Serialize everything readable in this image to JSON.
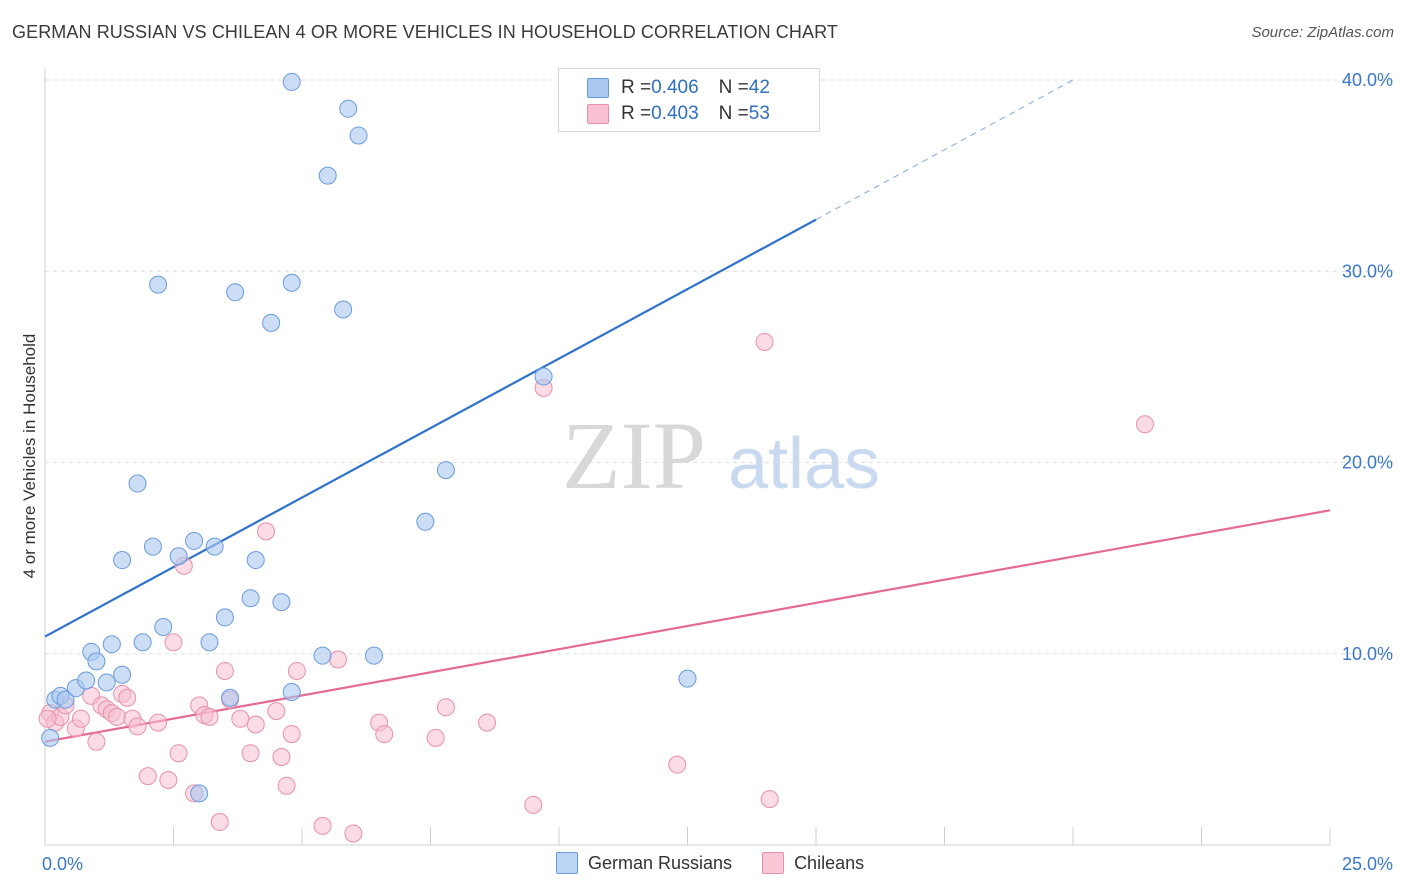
{
  "header": {
    "title": "GERMAN RUSSIAN VS CHILEAN 4 OR MORE VEHICLES IN HOUSEHOLD CORRELATION CHART",
    "source": "Source: ZipAtlas.com"
  },
  "legend": {
    "rows": [
      {
        "r_label": "R = ",
        "r_value": "0.406",
        "n_label": "N = ",
        "n_value": "42",
        "color": "#aac8f0",
        "border": "#6a9be0"
      },
      {
        "r_label": "R = ",
        "r_value": "0.403",
        "n_label": "N = ",
        "n_value": "53",
        "color": "#f8c0d0",
        "border": "#e890aa"
      }
    ]
  },
  "bottom_legend": {
    "items": [
      {
        "label": "German Russians",
        "color": "#bcd5f5",
        "border": "#6a9be0"
      },
      {
        "label": "Chileans",
        "color": "#f8c6d4",
        "border": "#e890aa"
      }
    ]
  },
  "watermark": {
    "zip": "ZIP",
    "atlas": "atlas"
  },
  "colors": {
    "blue": "#2f72cc",
    "pink": "#e56a93",
    "blue_point": "#aac8f0",
    "pink_point": "#f8c0d0"
  },
  "chart_data": {
    "type": "scatter",
    "title": "GERMAN RUSSIAN VS CHILEAN 4 OR MORE VEHICLES IN HOUSEHOLD CORRELATION CHART",
    "xlabel": "",
    "ylabel": "4 or more Vehicles in Household",
    "xlim": [
      0,
      25
    ],
    "ylim": [
      0,
      40
    ],
    "x_tick_labels": [
      "0.0%",
      "25.0%"
    ],
    "y_ticks": [
      10,
      20,
      30,
      40
    ],
    "y_tick_labels": [
      "10.0%",
      "20.0%",
      "30.0%",
      "40.0%"
    ],
    "grid": true,
    "series": [
      {
        "name": "German Russians",
        "trend": {
          "x0": 0,
          "y0": 10.9,
          "x1": 15,
          "y1": 32.7,
          "dash_to_x": 20,
          "dash_to_y": 40
        },
        "points": [
          [
            0.1,
            5.6
          ],
          [
            0.2,
            7.6
          ],
          [
            0.3,
            7.8
          ],
          [
            0.4,
            7.6
          ],
          [
            0.6,
            8.2
          ],
          [
            0.8,
            8.6
          ],
          [
            0.9,
            10.1
          ],
          [
            1.0,
            9.6
          ],
          [
            1.2,
            8.5
          ],
          [
            1.3,
            10.5
          ],
          [
            1.5,
            8.9
          ],
          [
            1.5,
            14.9
          ],
          [
            1.9,
            10.6
          ],
          [
            1.8,
            18.9
          ],
          [
            2.1,
            15.6
          ],
          [
            2.2,
            29.3
          ],
          [
            2.3,
            11.4
          ],
          [
            2.6,
            15.1
          ],
          [
            2.9,
            15.9
          ],
          [
            3.0,
            2.7
          ],
          [
            3.2,
            10.6
          ],
          [
            3.3,
            15.6
          ],
          [
            3.5,
            11.9
          ],
          [
            3.6,
            7.7
          ],
          [
            3.7,
            28.9
          ],
          [
            4.0,
            12.9
          ],
          [
            4.1,
            14.9
          ],
          [
            4.4,
            27.3
          ],
          [
            4.6,
            12.7
          ],
          [
            4.8,
            29.4
          ],
          [
            4.8,
            39.9
          ],
          [
            4.8,
            8.0
          ],
          [
            5.4,
            9.9
          ],
          [
            5.5,
            35.0
          ],
          [
            5.8,
            28.0
          ],
          [
            5.9,
            38.5
          ],
          [
            6.1,
            37.1
          ],
          [
            6.4,
            9.9
          ],
          [
            7.4,
            16.9
          ],
          [
            7.8,
            19.6
          ],
          [
            9.7,
            24.5
          ],
          [
            12.5,
            8.7
          ]
        ]
      },
      {
        "name": "Chileans",
        "trend": {
          "x0": 0,
          "y0": 5.4,
          "x1": 25,
          "y1": 17.5
        },
        "points": [
          [
            0.1,
            6.9
          ],
          [
            0.2,
            6.4
          ],
          [
            0.3,
            6.7
          ],
          [
            0.4,
            7.3
          ],
          [
            0.6,
            6.1
          ],
          [
            0.7,
            6.6
          ],
          [
            0.9,
            7.8
          ],
          [
            1.0,
            5.4
          ],
          [
            1.1,
            7.3
          ],
          [
            1.2,
            7.1
          ],
          [
            1.3,
            6.9
          ],
          [
            1.4,
            6.7
          ],
          [
            1.5,
            7.9
          ],
          [
            1.6,
            7.7
          ],
          [
            1.7,
            6.6
          ],
          [
            1.8,
            6.2
          ],
          [
            2.0,
            3.6
          ],
          [
            2.2,
            6.4
          ],
          [
            2.4,
            3.4
          ],
          [
            2.5,
            10.6
          ],
          [
            2.6,
            4.8
          ],
          [
            2.7,
            14.6
          ],
          [
            2.9,
            2.7
          ],
          [
            3.0,
            7.3
          ],
          [
            3.1,
            6.8
          ],
          [
            3.2,
            6.7
          ],
          [
            3.4,
            1.2
          ],
          [
            3.5,
            9.1
          ],
          [
            3.6,
            7.6
          ],
          [
            3.8,
            6.6
          ],
          [
            4.0,
            4.8
          ],
          [
            4.1,
            6.3
          ],
          [
            4.3,
            16.4
          ],
          [
            4.5,
            7.0
          ],
          [
            4.6,
            4.6
          ],
          [
            4.7,
            3.1
          ],
          [
            4.8,
            5.8
          ],
          [
            4.9,
            9.1
          ],
          [
            5.4,
            1.0
          ],
          [
            5.7,
            9.7
          ],
          [
            6.0,
            0.6
          ],
          [
            6.5,
            6.4
          ],
          [
            6.6,
            5.8
          ],
          [
            7.6,
            5.6
          ],
          [
            7.8,
            7.2
          ],
          [
            8.6,
            6.4
          ],
          [
            9.5,
            2.1
          ],
          [
            9.7,
            23.9
          ],
          [
            12.3,
            4.2
          ],
          [
            14.0,
            26.3
          ],
          [
            14.1,
            2.4
          ],
          [
            21.4,
            22.0
          ],
          [
            0.05,
            6.6
          ]
        ]
      }
    ]
  }
}
